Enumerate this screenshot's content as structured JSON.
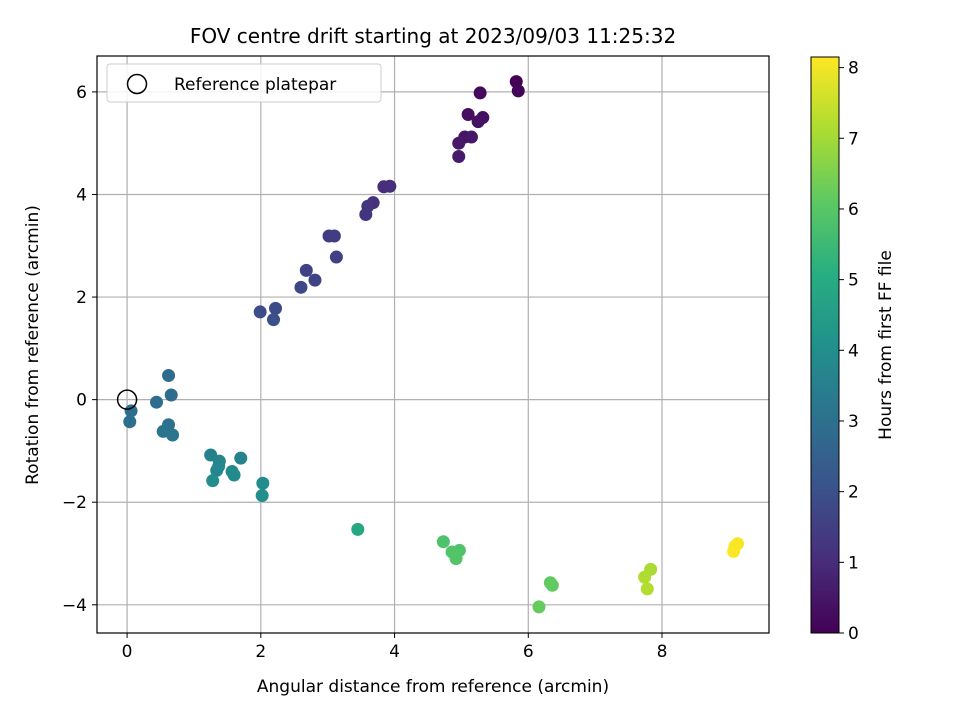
{
  "chart_data": {
    "type": "scatter",
    "title": "FOV centre drift starting at 2023/09/03 11:25:32",
    "xlabel": "Angular distance from reference (arcmin)",
    "ylabel": "Rotation from reference (arcmin)",
    "xlim": [
      -0.45,
      9.6
    ],
    "ylim": [
      -4.55,
      6.7
    ],
    "xticks": [
      0,
      2,
      4,
      6,
      8
    ],
    "xtick_labels": [
      "0",
      "2",
      "4",
      "6",
      "8"
    ],
    "yticks": [
      -4,
      -2,
      0,
      2,
      4,
      6
    ],
    "ytick_labels": [
      "−4",
      "−2",
      "0",
      "2",
      "4",
      "6"
    ],
    "grid": true,
    "legend": {
      "position": "top-left",
      "entries": [
        "Reference platepar"
      ]
    },
    "reference_point": {
      "x": 0,
      "y": 0,
      "label": "Reference platepar"
    },
    "colorbar": {
      "label": "Hours from first FF file",
      "range": [
        0,
        8.15
      ],
      "ticks": [
        0,
        1,
        2,
        3,
        4,
        5,
        6,
        7,
        8
      ],
      "tick_labels": [
        "0",
        "1",
        "2",
        "3",
        "4",
        "5",
        "6",
        "7",
        "8"
      ],
      "colormap": "viridis"
    },
    "points": [
      {
        "x": 5.82,
        "y": 6.2,
        "hours": 0.05
      },
      {
        "x": 5.85,
        "y": 6.02,
        "hours": 0.1
      },
      {
        "x": 5.28,
        "y": 5.98,
        "hours": 0.2
      },
      {
        "x": 5.1,
        "y": 5.56,
        "hours": 0.3
      },
      {
        "x": 5.32,
        "y": 5.5,
        "hours": 0.35
      },
      {
        "x": 5.25,
        "y": 5.42,
        "hours": 0.4
      },
      {
        "x": 5.05,
        "y": 5.12,
        "hours": 0.45
      },
      {
        "x": 5.15,
        "y": 5.12,
        "hours": 0.5
      },
      {
        "x": 4.96,
        "y": 5.0,
        "hours": 0.55
      },
      {
        "x": 4.96,
        "y": 4.74,
        "hours": 0.6
      },
      {
        "x": 3.84,
        "y": 4.15,
        "hours": 1.05
      },
      {
        "x": 3.93,
        "y": 4.16,
        "hours": 1.1
      },
      {
        "x": 3.68,
        "y": 3.84,
        "hours": 1.15
      },
      {
        "x": 3.6,
        "y": 3.77,
        "hours": 1.2
      },
      {
        "x": 3.57,
        "y": 3.61,
        "hours": 1.25
      },
      {
        "x": 3.02,
        "y": 3.19,
        "hours": 1.4
      },
      {
        "x": 3.1,
        "y": 3.19,
        "hours": 1.45
      },
      {
        "x": 3.13,
        "y": 2.78,
        "hours": 1.55
      },
      {
        "x": 2.68,
        "y": 2.52,
        "hours": 1.6
      },
      {
        "x": 2.81,
        "y": 2.33,
        "hours": 1.65
      },
      {
        "x": 2.6,
        "y": 2.19,
        "hours": 1.75
      },
      {
        "x": 2.22,
        "y": 1.78,
        "hours": 1.85
      },
      {
        "x": 1.99,
        "y": 1.71,
        "hours": 1.9
      },
      {
        "x": 2.19,
        "y": 1.56,
        "hours": 1.95
      },
      {
        "x": 0.62,
        "y": 0.47,
        "hours": 2.8
      },
      {
        "x": 0.66,
        "y": 0.09,
        "hours": 2.85
      },
      {
        "x": 0.44,
        "y": -0.05,
        "hours": 2.9
      },
      {
        "x": 0.06,
        "y": -0.22,
        "hours": 2.95
      },
      {
        "x": 0.04,
        "y": -0.43,
        "hours": 3.0
      },
      {
        "x": 0.62,
        "y": -0.49,
        "hours": 3.05
      },
      {
        "x": 0.54,
        "y": -0.62,
        "hours": 3.1
      },
      {
        "x": 0.68,
        "y": -0.69,
        "hours": 3.15
      },
      {
        "x": 1.25,
        "y": -1.08,
        "hours": 3.55
      },
      {
        "x": 1.7,
        "y": -1.14,
        "hours": 3.6
      },
      {
        "x": 1.38,
        "y": -1.2,
        "hours": 3.65
      },
      {
        "x": 1.37,
        "y": -1.3,
        "hours": 3.7
      },
      {
        "x": 1.34,
        "y": -1.38,
        "hours": 3.75
      },
      {
        "x": 1.57,
        "y": -1.4,
        "hours": 3.8
      },
      {
        "x": 1.6,
        "y": -1.47,
        "hours": 3.85
      },
      {
        "x": 1.28,
        "y": -1.58,
        "hours": 3.9
      },
      {
        "x": 2.03,
        "y": -1.63,
        "hours": 3.95
      },
      {
        "x": 2.02,
        "y": -1.87,
        "hours": 4.0
      },
      {
        "x": 3.45,
        "y": -2.53,
        "hours": 4.85
      },
      {
        "x": 4.73,
        "y": -2.77,
        "hours": 5.8
      },
      {
        "x": 4.97,
        "y": -2.94,
        "hours": 5.85
      },
      {
        "x": 4.86,
        "y": -2.97,
        "hours": 5.88
      },
      {
        "x": 4.9,
        "y": -3.02,
        "hours": 5.9
      },
      {
        "x": 4.92,
        "y": -3.1,
        "hours": 5.92
      },
      {
        "x": 6.33,
        "y": -3.57,
        "hours": 6.1
      },
      {
        "x": 6.36,
        "y": -3.62,
        "hours": 6.15
      },
      {
        "x": 6.16,
        "y": -4.04,
        "hours": 6.2
      },
      {
        "x": 7.83,
        "y": -3.31,
        "hours": 7.1
      },
      {
        "x": 7.74,
        "y": -3.46,
        "hours": 7.15
      },
      {
        "x": 7.78,
        "y": -3.69,
        "hours": 7.2
      },
      {
        "x": 9.13,
        "y": -2.81,
        "hours": 8.05
      },
      {
        "x": 9.09,
        "y": -2.86,
        "hours": 8.1
      },
      {
        "x": 9.07,
        "y": -2.96,
        "hours": 8.12
      }
    ]
  }
}
